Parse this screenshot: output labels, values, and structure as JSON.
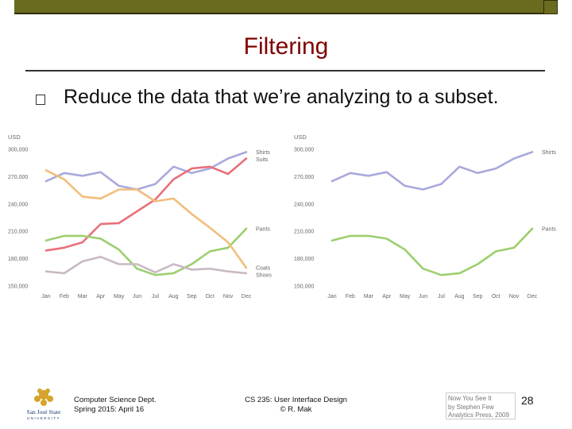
{
  "slide": {
    "title": "Filtering",
    "bullet": "Reduce the data that we’re analyzing to a subset."
  },
  "footer": {
    "dept_line1": "Computer Science Dept.",
    "dept_line2": "Spring 2015: April 16",
    "course_line1": "CS 235: User Interface Design",
    "course_line2": "© R. Mak",
    "credit_line1": "Now You See It",
    "credit_line2": "by Stephen Few",
    "credit_line3": "Analytics Press, 2009",
    "page_number": "28",
    "logo_text1": "San José State",
    "logo_text2": "UNIVERSITY"
  },
  "colors": {
    "Shirts": "#a9a9dc",
    "Suits": "#e8707a",
    "Pants": "#9ccf6f",
    "Coats": "#f2bd7c",
    "Shoes": "#c9b9c4"
  },
  "chart_data": [
    {
      "type": "line",
      "ylabel": "USD",
      "categories": [
        "Jan",
        "Feb",
        "Mar",
        "Apr",
        "May",
        "Jun",
        "Jul",
        "Aug",
        "Sep",
        "Oct",
        "Nov",
        "Dec"
      ],
      "ytick_labels": [
        "300,000",
        "270,000",
        "240,000",
        "210,000",
        "180,000",
        "150,000"
      ],
      "ylim": [
        150000,
        300000
      ],
      "series": [
        {
          "name": "Shirts",
          "values": [
            265000,
            274000,
            271000,
            275000,
            260000,
            256000,
            262000,
            281000,
            274000,
            279000,
            290000,
            297000
          ]
        },
        {
          "name": "Suits",
          "values": [
            189000,
            192000,
            198000,
            218000,
            219000,
            232000,
            245000,
            267000,
            279000,
            281000,
            273000,
            290000
          ]
        },
        {
          "name": "Pants",
          "values": [
            200000,
            205000,
            205000,
            202000,
            190000,
            169000,
            162000,
            164000,
            174000,
            188000,
            192000,
            213000
          ]
        },
        {
          "name": "Coats",
          "values": [
            277000,
            267000,
            248000,
            246000,
            256000,
            256000,
            243000,
            246000,
            229000,
            214000,
            198000,
            170000
          ]
        },
        {
          "name": "Shoes",
          "values": [
            166000,
            164000,
            177000,
            182000,
            174000,
            174000,
            165000,
            174000,
            168000,
            169000,
            166000,
            164000
          ]
        }
      ]
    },
    {
      "type": "line",
      "ylabel": "USD",
      "categories": [
        "Jan",
        "Feb",
        "Mar",
        "Apr",
        "May",
        "Jun",
        "Jul",
        "Aug",
        "Sep",
        "Oct",
        "Nov",
        "Dec"
      ],
      "ytick_labels": [
        "300,000",
        "270,000",
        "240,000",
        "210,000",
        "180,000",
        "150,000"
      ],
      "ylim": [
        150000,
        300000
      ],
      "series": [
        {
          "name": "Shirts",
          "values": [
            265000,
            274000,
            271000,
            275000,
            260000,
            256000,
            262000,
            281000,
            274000,
            279000,
            290000,
            297000
          ]
        },
        {
          "name": "Pants",
          "values": [
            200000,
            205000,
            205000,
            202000,
            190000,
            169000,
            162000,
            164000,
            174000,
            188000,
            192000,
            213000
          ]
        }
      ]
    }
  ]
}
